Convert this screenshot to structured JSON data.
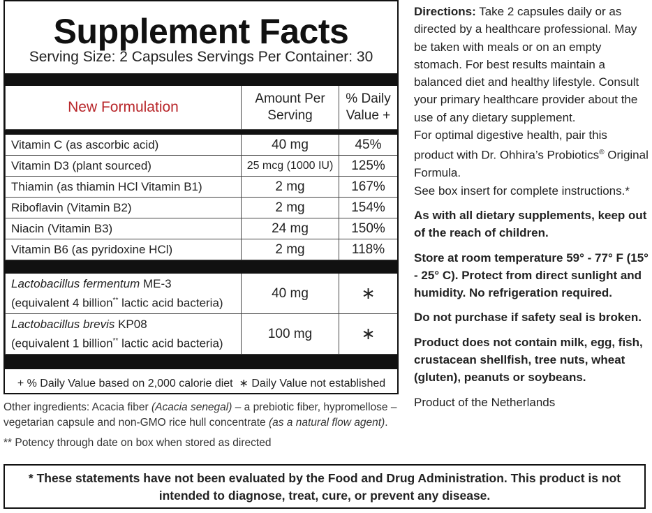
{
  "facts": {
    "title": "Supplement Facts",
    "serving": "Serving Size: 2 Capsules  Servings Per Container: 30",
    "header": [
      "New Formulation",
      "Amount Per Serving",
      "% Daily Value +"
    ],
    "vitamins": [
      [
        "Vitamin C (as ascorbic acid)",
        "40 mg",
        "45%"
      ],
      [
        "Vitamin D3 (plant sourced)",
        "25 mcg (1000 IU)",
        "125%"
      ],
      [
        "Thiamin (as thiamin HCl  Vitamin B1)",
        "2 mg",
        "167%"
      ],
      [
        "Riboflavin (Vitamin B2)",
        "2 mg",
        "154%"
      ],
      [
        "Niacin (Vitamin B3)",
        "24 mg",
        "150%"
      ],
      [
        "Vitamin B6 (as pyridoxine HCl)",
        "2 mg",
        "118%"
      ]
    ],
    "probiotics": [
      {
        "species": "Lactobacillus fermentum",
        "strain": " ME-3",
        "equivalent": "(equivalent 4 billion",
        "mark": "**",
        "equivalent_end": " lactic acid bacteria)",
        "amount": "40 mg",
        "dv": "∗"
      },
      {
        "species": "Lactobacillus brevis",
        "strain": " KP08",
        "equivalent": "(equivalent 1 billion",
        "mark": "**",
        "equivalent_end": " lactic acid bacteria)",
        "amount": "100 mg",
        "dv": "∗"
      }
    ],
    "footnote": [
      "+  % Daily Value based on 2,000 calorie diet",
      "∗ Daily Value not established"
    ]
  },
  "other_ingredients": [
    "Other ingredients: Acacia fiber ",
    "(Acacia senegal)",
    " – a prebiotic fiber, hypromellose – vegetarian capsule and non-GMO rice hull concentrate ",
    "(as a natural flow agent)",
    "."
  ],
  "potency": "** Potency through date on box when stored as directed",
  "directions": {
    "label": "Directions:",
    "text": " Take 2 capsules daily or as directed by a healthcare professional. May be taken with meals or on an empty stomach. For best results maintain a balanced diet and healthy lifestyle.  Consult your primary healthcare provider about the use of any dietary supplement.",
    "pairing": "For optimal digestive health, pair this product with Dr. Ohhira’s Probiotics",
    "registered": "®",
    "pairing_end": " Original Formula.",
    "insert": "See box insert for complete instructions.*"
  },
  "warnings": [
    "As with all dietary supplements, keep out of the reach of children.",
    "Store at room temperature 59° - 77° F (15° - 25° C). Protect from direct sunlight and humidity. No refrigeration required.",
    "Do not purchase if safety seal is broken.",
    "Product does not contain milk, egg, fish, crustacean shellfish, tree nuts, wheat (gluten), peanuts or soybeans."
  ],
  "origin": "Product of the Netherlands",
  "disclaimer": "* These statements have not been evaluated by the Food and Drug Administration. This product is not intended to diagnose, treat, cure, or prevent any disease."
}
